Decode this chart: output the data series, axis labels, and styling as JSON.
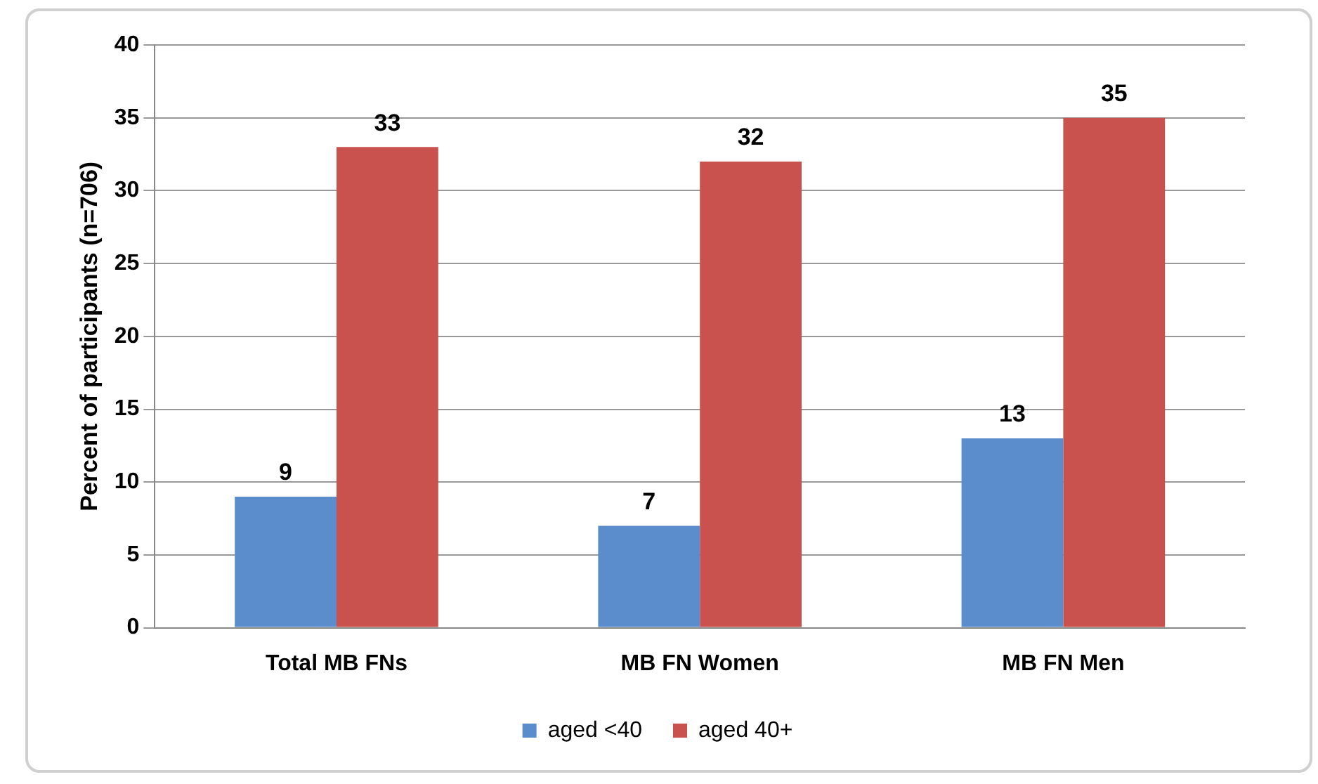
{
  "chart_data": {
    "type": "bar",
    "ylabel": "Percent of participants (n=706)",
    "categories": [
      "Total MB FNs",
      "MB FN Women",
      "MB FN Men"
    ],
    "series": [
      {
        "name": "aged <40",
        "color": "#5b8ccc",
        "values": [
          9,
          7,
          13
        ]
      },
      {
        "name": "aged 40+",
        "color": "#c9524f",
        "values": [
          33,
          32,
          35
        ]
      }
    ],
    "ylim": [
      0,
      40
    ],
    "yticks": [
      0,
      5,
      10,
      15,
      20,
      25,
      30,
      35,
      40
    ],
    "grid": "y",
    "legend": "bottom",
    "data_labels": true
  }
}
